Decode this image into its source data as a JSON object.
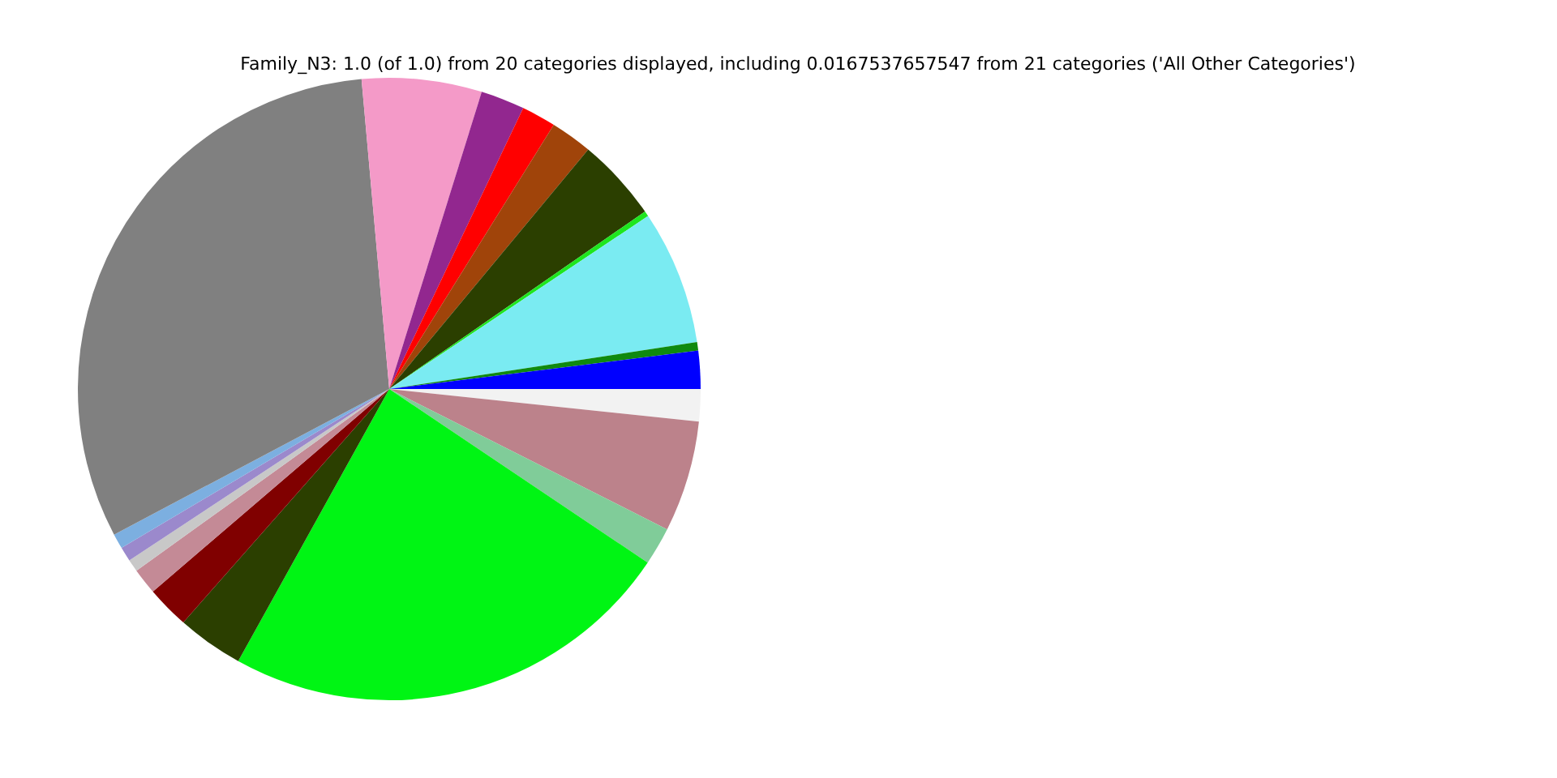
{
  "chart_data": {
    "type": "pie",
    "title": "Family_N3: 1.0 (of 1.0) from 20 categories displayed, including 0.0167537657547 from 21 categories ('All Other Categories')",
    "categories": [
      null,
      null,
      null,
      null,
      null,
      null,
      null,
      null,
      null,
      null,
      null,
      null,
      null,
      null,
      null,
      null,
      null,
      null,
      null,
      null
    ],
    "values": [
      1.67,
      5.78,
      1.97,
      23.64,
      3.44,
      2.22,
      1.36,
      0.64,
      0.75,
      0.78,
      31.33,
      6.22,
      2.28,
      1.78,
      2.17,
      4.31,
      0.28,
      6.97,
      0.44,
      1.97
    ],
    "colors": [
      "#f2f2f2",
      "#bc828b",
      "#80cc99",
      "#00f514",
      "#2b3f00",
      "#800000",
      "#c48a96",
      "#c8c8c8",
      "#9b89cc",
      "#7cafe0",
      "#808080",
      "#f49ac8",
      "#92278f",
      "#ff0000",
      "#a0440a",
      "#2b3f00",
      "#1ee61e",
      "#7aebf2",
      "#0f8a0f",
      "#0000ff"
    ],
    "legend": false
  }
}
